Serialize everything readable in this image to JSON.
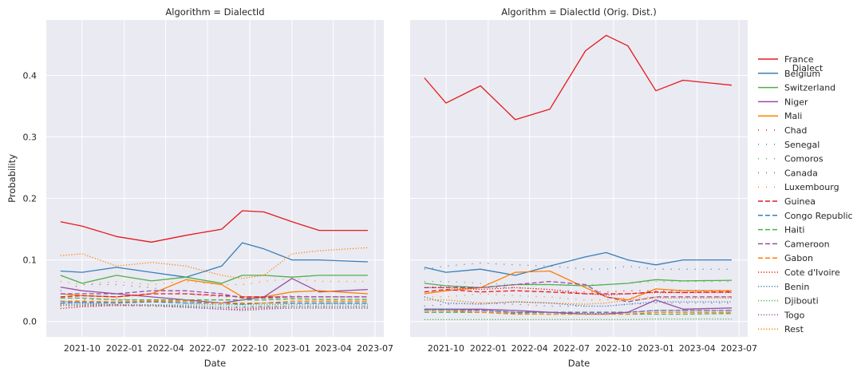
{
  "colors": {
    "France": "#e41a1c",
    "Belgium": "#377eb8",
    "Switzerland": "#4daf4a",
    "Niger": "#984ea3",
    "Mali": "#ff7f00",
    "Chad": "#e41a1c",
    "Senegal": "#377eb8",
    "Comoros": "#4daf4a",
    "Canada": "#984ea3",
    "Luxembourg": "#ff7f00",
    "Guinea": "#e41a1c",
    "Congo Republic": "#377eb8",
    "Haiti": "#4daf4a",
    "Cameroon": "#984ea3",
    "Gabon": "#ff7f00",
    "Cote d'Ivoire": "#e41a1c",
    "Benin": "#377eb8",
    "Djibouti": "#4daf4a",
    "Togo": "#984ea3",
    "Rest": "#ff7f00"
  },
  "legend": {
    "title": "Dialect",
    "items": [
      {
        "name": "France",
        "dash": "solid"
      },
      {
        "name": "Belgium",
        "dash": "solid"
      },
      {
        "name": "Switzerland",
        "dash": "solid"
      },
      {
        "name": "Niger",
        "dash": "solid"
      },
      {
        "name": "Mali",
        "dash": "solid"
      },
      {
        "name": "Chad",
        "dash": "sparse"
      },
      {
        "name": "Senegal",
        "dash": "sparse"
      },
      {
        "name": "Comoros",
        "dash": "sparse"
      },
      {
        "name": "Canada",
        "dash": "sparse"
      },
      {
        "name": "Luxembourg",
        "dash": "sparse"
      },
      {
        "name": "Guinea",
        "dash": "dashed"
      },
      {
        "name": "Congo Republic",
        "dash": "dashed"
      },
      {
        "name": "Haiti",
        "dash": "dashed"
      },
      {
        "name": "Cameroon",
        "dash": "dashed"
      },
      {
        "name": "Gabon",
        "dash": "dashed"
      },
      {
        "name": "Cote d'Ivoire",
        "dash": "dotted"
      },
      {
        "name": "Benin",
        "dash": "dotted"
      },
      {
        "name": "Djibouti",
        "dash": "dotted"
      },
      {
        "name": "Togo",
        "dash": "dotted"
      },
      {
        "name": "Rest",
        "dash": "dotted"
      }
    ]
  },
  "chart_data": [
    {
      "type": "line",
      "title": "Algorithm = DialectId",
      "xlabel": "Date",
      "ylabel": "Probability",
      "x_ticks": [
        "2021-10",
        "2022-01",
        "2022-04",
        "2022-07",
        "2022-10",
        "2023-01",
        "2023-04",
        "2023-07"
      ],
      "y_ticks": [
        "0.0",
        "0.1",
        "0.2",
        "0.3",
        "0.4"
      ],
      "ylim": [
        -0.025,
        0.49
      ],
      "xlim": [
        "2021-07-15",
        "2023-07-20"
      ],
      "grid": true,
      "x": [
        "2021-08-15",
        "2021-10-01",
        "2021-12-15",
        "2022-03-01",
        "2022-05-15",
        "2022-08-01",
        "2022-09-15",
        "2022-11-01",
        "2023-01-01",
        "2023-03-01",
        "2023-06-15"
      ],
      "series": [
        {
          "name": "France",
          "values": [
            0.162,
            0.155,
            0.138,
            0.129,
            0.14,
            0.15,
            0.18,
            0.178,
            0.162,
            0.148,
            0.148
          ]
        },
        {
          "name": "Belgium",
          "values": [
            0.082,
            0.08,
            0.088,
            0.08,
            0.072,
            0.09,
            0.128,
            0.118,
            0.1,
            0.1,
            0.097
          ]
        },
        {
          "name": "Switzerland",
          "values": [
            0.075,
            0.062,
            0.075,
            0.066,
            0.072,
            0.062,
            0.075,
            0.075,
            0.072,
            0.075,
            0.075
          ]
        },
        {
          "name": "Niger",
          "values": [
            0.056,
            0.05,
            0.045,
            0.04,
            0.035,
            0.03,
            0.035,
            0.04,
            0.07,
            0.048,
            0.052
          ]
        },
        {
          "name": "Mali",
          "values": [
            0.045,
            0.042,
            0.04,
            0.045,
            0.068,
            0.06,
            0.04,
            0.04,
            0.048,
            0.05,
            0.045
          ]
        },
        {
          "name": "Chad",
          "values": [
            0.025,
            0.025,
            0.027,
            0.025,
            0.023,
            0.022,
            0.023,
            0.024,
            0.025,
            0.024,
            0.025
          ]
        },
        {
          "name": "Senegal",
          "values": [
            0.03,
            0.035,
            0.037,
            0.033,
            0.03,
            0.028,
            0.028,
            0.03,
            0.03,
            0.03,
            0.03
          ]
        },
        {
          "name": "Comoros",
          "values": [
            0.028,
            0.027,
            0.026,
            0.025,
            0.025,
            0.024,
            0.024,
            0.025,
            0.025,
            0.025,
            0.025
          ]
        },
        {
          "name": "Canada",
          "values": [
            0.05,
            0.06,
            0.06,
            0.055,
            0.045,
            0.04,
            0.04,
            0.04,
            0.042,
            0.04,
            0.04
          ]
        },
        {
          "name": "Luxembourg",
          "values": [
            0.065,
            0.06,
            0.065,
            0.06,
            0.065,
            0.06,
            0.06,
            0.065,
            0.07,
            0.065,
            0.065
          ]
        },
        {
          "name": "Guinea",
          "values": [
            0.04,
            0.042,
            0.04,
            0.045,
            0.045,
            0.042,
            0.04,
            0.04,
            0.04,
            0.04,
            0.04
          ]
        },
        {
          "name": "Congo Republic",
          "values": [
            0.03,
            0.031,
            0.03,
            0.032,
            0.03,
            0.03,
            0.028,
            0.03,
            0.03,
            0.03,
            0.03
          ]
        },
        {
          "name": "Haiti",
          "values": [
            0.038,
            0.038,
            0.035,
            0.035,
            0.035,
            0.035,
            0.035,
            0.035,
            0.037,
            0.036,
            0.036
          ]
        },
        {
          "name": "Cameroon",
          "values": [
            0.045,
            0.045,
            0.045,
            0.05,
            0.05,
            0.045,
            0.038,
            0.038,
            0.04,
            0.04,
            0.04
          ]
        },
        {
          "name": "Gabon",
          "values": [
            0.033,
            0.033,
            0.032,
            0.033,
            0.033,
            0.03,
            0.03,
            0.03,
            0.033,
            0.033,
            0.033
          ]
        },
        {
          "name": "Cote d'Ivoire",
          "values": [
            0.021,
            0.024,
            0.026,
            0.026,
            0.023,
            0.02,
            0.02,
            0.022,
            0.022,
            0.022,
            0.022
          ]
        },
        {
          "name": "Benin",
          "values": [
            0.033,
            0.03,
            0.027,
            0.027,
            0.025,
            0.023,
            0.023,
            0.024,
            0.025,
            0.025,
            0.025
          ]
        },
        {
          "name": "Djibouti",
          "values": [
            0.026,
            0.026,
            0.027,
            0.027,
            0.027,
            0.027,
            0.027,
            0.027,
            0.028,
            0.028,
            0.028
          ]
        },
        {
          "name": "Togo",
          "values": [
            0.028,
            0.028,
            0.027,
            0.026,
            0.023,
            0.02,
            0.018,
            0.02,
            0.022,
            0.022,
            0.022
          ]
        },
        {
          "name": "Rest",
          "values": [
            0.107,
            0.11,
            0.09,
            0.096,
            0.09,
            0.075,
            0.07,
            0.075,
            0.11,
            0.115,
            0.12
          ]
        }
      ]
    },
    {
      "type": "line",
      "title": "Algorithm = DialectId (Orig. Dist.)",
      "xlabel": "Date",
      "ylabel": "",
      "x_ticks": [
        "2021-10",
        "2022-01",
        "2022-04",
        "2022-07",
        "2022-10",
        "2023-01",
        "2023-04",
        "2023-07"
      ],
      "y_ticks": [
        "0.0",
        "0.1",
        "0.2",
        "0.3",
        "0.4"
      ],
      "ylim": [
        -0.025,
        0.49
      ],
      "xlim": [
        "2021-07-15",
        "2023-07-20"
      ],
      "grid": true,
      "x": [
        "2021-08-15",
        "2021-10-01",
        "2021-12-15",
        "2022-03-01",
        "2022-05-15",
        "2022-08-01",
        "2022-09-15",
        "2022-11-01",
        "2023-01-01",
        "2023-03-01",
        "2023-06-15"
      ],
      "series": [
        {
          "name": "France",
          "values": [
            0.396,
            0.355,
            0.383,
            0.328,
            0.345,
            0.44,
            0.465,
            0.448,
            0.375,
            0.392,
            0.384
          ]
        },
        {
          "name": "Belgium",
          "values": [
            0.088,
            0.08,
            0.085,
            0.075,
            0.09,
            0.105,
            0.112,
            0.1,
            0.092,
            0.1,
            0.1
          ]
        },
        {
          "name": "Switzerland",
          "values": [
            0.062,
            0.058,
            0.055,
            0.06,
            0.06,
            0.058,
            0.06,
            0.062,
            0.068,
            0.066,
            0.067
          ]
        },
        {
          "name": "Niger",
          "values": [
            0.02,
            0.02,
            0.02,
            0.018,
            0.015,
            0.012,
            0.012,
            0.015,
            0.035,
            0.02,
            0.022
          ]
        },
        {
          "name": "Mali",
          "values": [
            0.045,
            0.05,
            0.055,
            0.08,
            0.082,
            0.055,
            0.04,
            0.035,
            0.053,
            0.05,
            0.05
          ]
        },
        {
          "name": "Chad",
          "values": [
            0.055,
            0.058,
            0.055,
            0.055,
            0.052,
            0.048,
            0.048,
            0.05,
            0.05,
            0.05,
            0.05
          ]
        },
        {
          "name": "Senegal",
          "values": [
            0.085,
            0.09,
            0.095,
            0.092,
            0.09,
            0.085,
            0.085,
            0.09,
            0.085,
            0.085,
            0.085
          ]
        },
        {
          "name": "Comoros",
          "values": [
            0.065,
            0.065,
            0.062,
            0.06,
            0.06,
            0.06,
            0.06,
            0.062,
            0.065,
            0.065,
            0.065
          ]
        },
        {
          "name": "Canada",
          "values": [
            0.025,
            0.028,
            0.03,
            0.028,
            0.025,
            0.025,
            0.025,
            0.028,
            0.03,
            0.03,
            0.03
          ]
        },
        {
          "name": "Luxembourg",
          "values": [
            0.04,
            0.04,
            0.045,
            0.042,
            0.04,
            0.035,
            0.035,
            0.038,
            0.04,
            0.04,
            0.04
          ]
        },
        {
          "name": "Guinea",
          "values": [
            0.048,
            0.052,
            0.048,
            0.05,
            0.048,
            0.045,
            0.045,
            0.045,
            0.048,
            0.047,
            0.048
          ]
        },
        {
          "name": "Congo Republic",
          "values": [
            0.02,
            0.02,
            0.018,
            0.015,
            0.015,
            0.015,
            0.015,
            0.015,
            0.018,
            0.018,
            0.018
          ]
        },
        {
          "name": "Haiti",
          "values": [
            0.015,
            0.015,
            0.015,
            0.013,
            0.012,
            0.012,
            0.012,
            0.012,
            0.012,
            0.012,
            0.013
          ]
        },
        {
          "name": "Cameroon",
          "values": [
            0.055,
            0.055,
            0.055,
            0.06,
            0.065,
            0.06,
            0.04,
            0.032,
            0.04,
            0.04,
            0.04
          ]
        },
        {
          "name": "Gabon",
          "values": [
            0.018,
            0.018,
            0.015,
            0.012,
            0.012,
            0.012,
            0.012,
            0.012,
            0.015,
            0.015,
            0.015
          ]
        },
        {
          "name": "Cote d'Ivoire",
          "values": [
            0.055,
            0.055,
            0.052,
            0.055,
            0.052,
            0.045,
            0.043,
            0.045,
            0.047,
            0.047,
            0.047
          ]
        },
        {
          "name": "Benin",
          "values": [
            0.04,
            0.03,
            0.028,
            0.032,
            0.03,
            0.025,
            0.025,
            0.028,
            0.032,
            0.032,
            0.032
          ]
        },
        {
          "name": "Djibouti",
          "values": [
            0.003,
            0.003,
            0.003,
            0.003,
            0.003,
            0.003,
            0.003,
            0.003,
            0.004,
            0.004,
            0.004
          ]
        },
        {
          "name": "Togo",
          "values": [
            0.018,
            0.018,
            0.018,
            0.015,
            0.015,
            0.013,
            0.013,
            0.015,
            0.018,
            0.018,
            0.018
          ]
        },
        {
          "name": "Rest",
          "values": [
            0.035,
            0.035,
            0.03,
            0.032,
            0.03,
            0.028,
            0.03,
            0.035,
            0.038,
            0.038,
            0.038
          ]
        }
      ]
    }
  ]
}
